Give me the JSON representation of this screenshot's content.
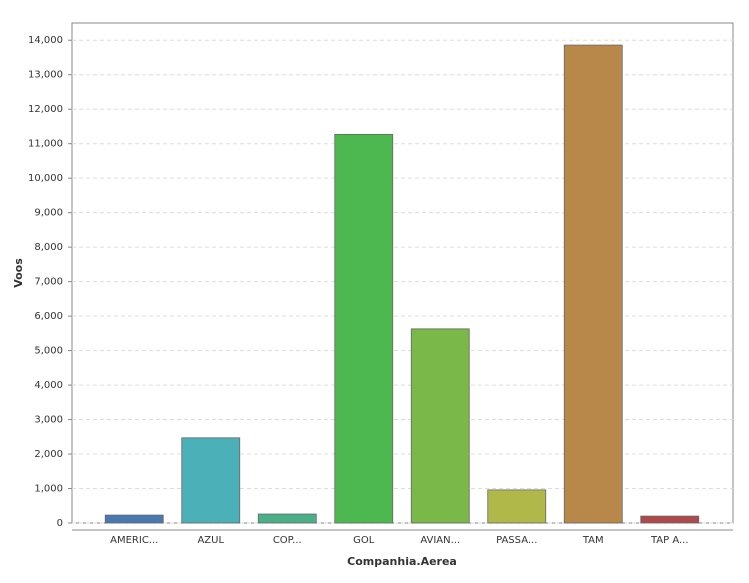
{
  "chart_data": {
    "type": "bar",
    "x_label": "Companhia.Aerea",
    "y_label": "Voos",
    "categories": [
      "AMERIC...",
      "AZUL",
      "COP...",
      "GOL",
      "AVIAN...",
      "PASSA...",
      "TAM",
      "TAP A..."
    ],
    "values": [
      230,
      2470,
      260,
      11270,
      5630,
      960,
      13860,
      200
    ],
    "colors": [
      "#4a78b0",
      "#4bb0b8",
      "#4bb08a",
      "#4cb84f",
      "#7ab84a",
      "#b0b84a",
      "#b8884a",
      "#b04a4a"
    ],
    "ylim": [
      0,
      14500
    ],
    "yticks": [
      0,
      {
        "value": 1000,
        "label": "1,000"
      },
      {
        "value": 2000,
        "label": "2,000"
      },
      {
        "value": 3000,
        "label": "3,000"
      },
      {
        "value": 4000,
        "label": "4,000"
      },
      {
        "value": 5000,
        "label": "5,000"
      },
      {
        "value": 6000,
        "label": "6,000"
      },
      {
        "value": 7000,
        "label": "7,000"
      },
      {
        "value": 8000,
        "label": "8,000"
      },
      {
        "value": 9000,
        "label": "9,000"
      },
      {
        "value": 10000,
        "label": "10,000"
      },
      {
        "value": 11000,
        "label": "11,000"
      },
      {
        "value": 12000,
        "label": "12,000"
      },
      {
        "value": 13000,
        "label": "13,000"
      },
      {
        "value": 14000,
        "label": "14,000"
      }
    ],
    "grid": true
  }
}
